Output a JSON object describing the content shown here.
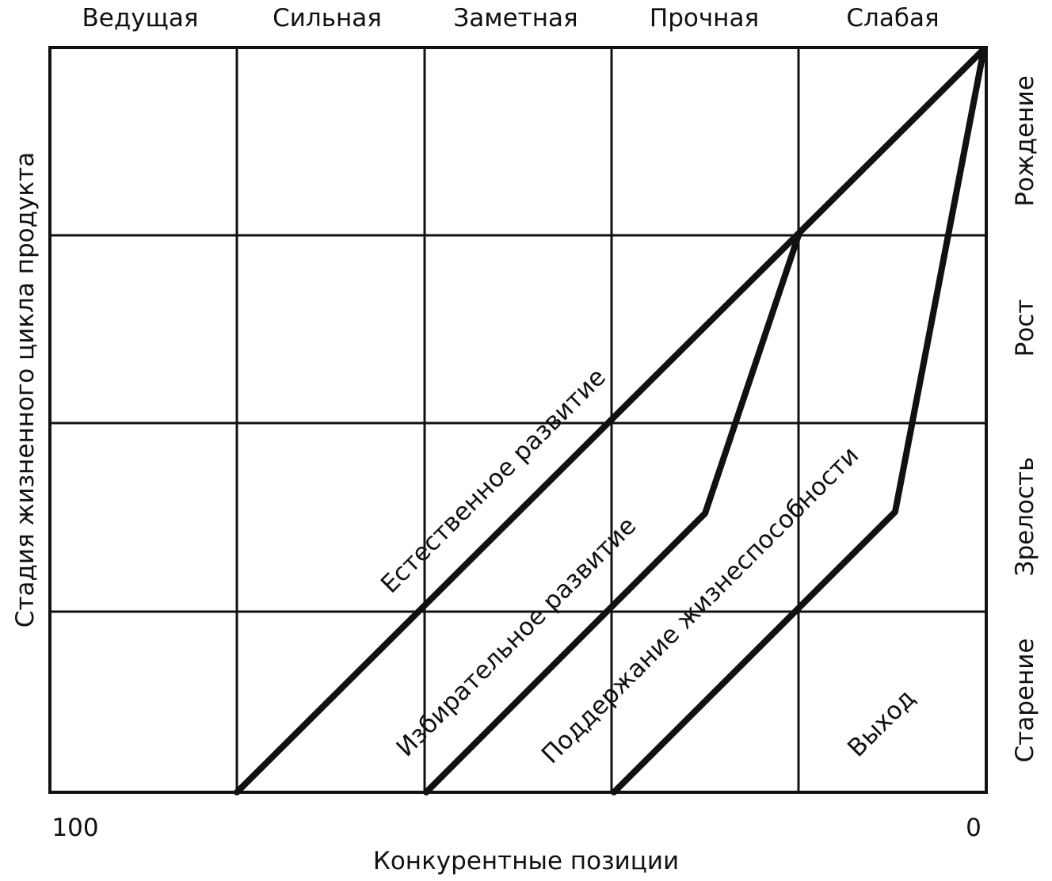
{
  "header": {
    "columns": [
      "Ведущая",
      "Сильная",
      "Заметная",
      "Прочная",
      "Слабая"
    ]
  },
  "right_axis": {
    "stages": [
      "Рождение",
      "Рост",
      "Зрелость",
      "Старение"
    ]
  },
  "y_axis": {
    "label": "Стадия жизненного цикла продукта"
  },
  "x_axis": {
    "label": "Конкурентные позиции",
    "min_label": "100",
    "max_label": "0"
  },
  "zones": {
    "natural": "Естественное развитие",
    "selective": "Избирательное развитие",
    "viability": "Поддержание жизнеспособности",
    "exit": "Выход"
  }
}
